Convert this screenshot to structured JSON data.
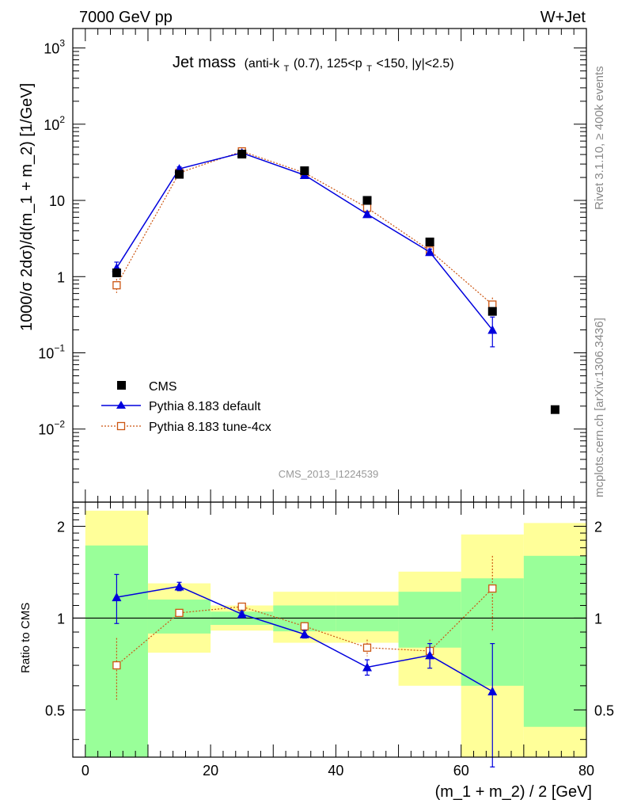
{
  "header": {
    "left": "7000 GeV pp",
    "right": "W+Jet"
  },
  "side_labels": {
    "rivet": "Rivet 3.1.10, ≥ 400k events",
    "mcplots": "mcplots.cern.ch [arXiv:1306.3436]"
  },
  "watermark": "CMS_2013_I1224539",
  "colors": {
    "data": "#000000",
    "default": "#0000dd",
    "tune": "#cc5511",
    "band_inner": "#99ff99",
    "band_outer": "#ffff99"
  },
  "chart_data": [
    {
      "type": "scatter",
      "panel": "main",
      "title": "Jet mass",
      "title_detail_parts": [
        "(anti-k",
        "T",
        "(0.7), 125<p",
        "T",
        "<150, |y|<2.5)"
      ],
      "ylabel": "1000/σ 2dσ)/d(m_1 + m_2) [1/GeV]",
      "xlabel": "",
      "xlim": [
        -2,
        80
      ],
      "ylim": [
        0.0011,
        1800
      ],
      "yscale": "log",
      "y_ticks": [
        {
          "value": 1000,
          "base": "10",
          "exp": "3"
        },
        {
          "value": 100,
          "base": "10",
          "exp": "2"
        },
        {
          "value": 10,
          "base": "10",
          "exp": ""
        },
        {
          "value": 1,
          "base": "1",
          "exp": ""
        },
        {
          "value": 0.1,
          "base": "10",
          "exp": "−1"
        },
        {
          "value": 0.01,
          "base": "10",
          "exp": "−2"
        }
      ],
      "legend_position": "lower-left",
      "series": [
        {
          "name": "CMS",
          "style": "square",
          "x": [
            5,
            15,
            25,
            35,
            45,
            55,
            65,
            75
          ],
          "y": [
            1.12,
            22.0,
            40.5,
            24.5,
            10.0,
            2.85,
            0.35,
            0.018
          ]
        },
        {
          "name": "Pythia 8.183 default",
          "style": "triangle",
          "x": [
            5,
            15,
            25,
            35,
            45,
            55,
            65
          ],
          "y": [
            1.3,
            26.0,
            42.0,
            21.5,
            6.6,
            2.1,
            0.2
          ],
          "yerr_lo": [
            0.25,
            1.5,
            1.5,
            1.0,
            0.4,
            0.2,
            0.08
          ],
          "yerr_hi": [
            0.25,
            1.5,
            1.5,
            1.0,
            0.4,
            0.2,
            0.095
          ]
        },
        {
          "name": "Pythia 8.183 tune-4cx",
          "style": "open-square",
          "x": [
            5,
            15,
            25,
            35,
            45,
            55,
            65
          ],
          "y": [
            0.77,
            23.0,
            44.0,
            23.0,
            8.0,
            2.2,
            0.43
          ],
          "yerr_lo": [
            0.16,
            1.0,
            1.5,
            1.0,
            0.5,
            0.2,
            0.1
          ],
          "yerr_hi": [
            0.16,
            1.0,
            1.5,
            1.0,
            0.5,
            0.2,
            0.1
          ]
        }
      ]
    },
    {
      "type": "scatter",
      "panel": "ratio",
      "ylabel": "Ratio to CMS",
      "xlabel": "(m_1 + m_2) / 2 [GeV]",
      "xlim": [
        -2,
        80
      ],
      "ylim": [
        0.35,
        2.4
      ],
      "yscale": "log",
      "x_ticks": [
        "0",
        "20",
        "40",
        "60",
        "80"
      ],
      "y_ticks": [
        "0.5",
        "1",
        "2"
      ],
      "reference": 1,
      "bands": {
        "edges": [
          0,
          10,
          20,
          30,
          40,
          50,
          60,
          70,
          80
        ],
        "inner_lo": [
          0.3,
          0.89,
          0.95,
          0.905,
          0.905,
          0.8,
          0.6,
          0.44
        ],
        "inner_hi": [
          1.73,
          1.15,
          1.05,
          1.1,
          1.1,
          1.22,
          1.35,
          1.6
        ],
        "outer_lo": [
          0.3,
          0.77,
          0.91,
          0.83,
          0.83,
          0.6,
          0.33,
          0.33
        ],
        "outer_hi": [
          2.25,
          1.3,
          1.1,
          1.22,
          1.22,
          1.42,
          1.88,
          2.05
        ]
      },
      "series": [
        {
          "name": "Pythia 8.183 default",
          "style": "triangle",
          "x": [
            5,
            15,
            25,
            35,
            45,
            55,
            65
          ],
          "y": [
            1.17,
            1.27,
            1.03,
            0.885,
            0.69,
            0.755,
            0.575
          ],
          "yerr_lo": [
            0.21,
            0.04,
            0.02,
            0.025,
            0.04,
            0.07,
            0.25
          ],
          "yerr_hi": [
            0.22,
            0.04,
            0.02,
            0.025,
            0.04,
            0.07,
            0.25
          ]
        },
        {
          "name": "Pythia 8.183 tune-4cx",
          "style": "open-square",
          "x": [
            5,
            15,
            25,
            35,
            45,
            55,
            65
          ],
          "y": [
            0.7,
            1.04,
            1.09,
            0.94,
            0.8,
            0.78,
            1.25
          ],
          "yerr_lo": [
            0.16,
            0.03,
            0.03,
            0.03,
            0.05,
            0.07,
            0.35
          ],
          "yerr_hi": [
            0.16,
            0.03,
            0.03,
            0.03,
            0.05,
            0.07,
            0.35
          ]
        }
      ]
    }
  ]
}
